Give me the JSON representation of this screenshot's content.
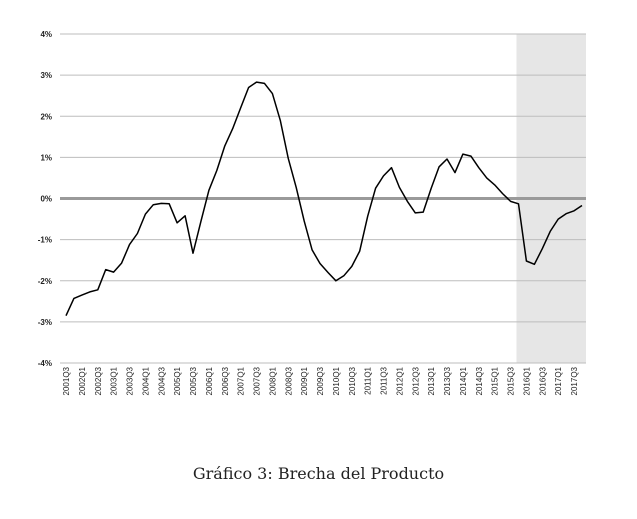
{
  "caption": "Gráfico 3: Brecha del Producto",
  "chart_data": {
    "type": "line",
    "title": "",
    "xlabel": "",
    "ylabel": "",
    "ylim": [
      -4,
      4
    ],
    "yticks": [
      4,
      3,
      2,
      1,
      0,
      -1,
      -2,
      -3,
      -4
    ],
    "ytick_labels": [
      "4%",
      "3%",
      "2%",
      "1%",
      "0%",
      "-1%",
      "-2%",
      "-3%",
      "-4%"
    ],
    "grid": true,
    "zero_line": {
      "value": 0,
      "color": "#9a9a9a"
    },
    "shaded_region": {
      "from": "2015Q4",
      "to": "2017Q4",
      "color": "#e6e6e6"
    },
    "line_color": "#000000",
    "x": [
      "2001Q3",
      "2001Q4",
      "2002Q1",
      "2002Q2",
      "2002Q3",
      "2002Q4",
      "2003Q1",
      "2003Q2",
      "2003Q3",
      "2003Q4",
      "2004Q1",
      "2004Q2",
      "2004Q3",
      "2004Q4",
      "2005Q1",
      "2005Q2",
      "2005Q3",
      "2005Q4",
      "2006Q1",
      "2006Q2",
      "2006Q3",
      "2006Q4",
      "2007Q1",
      "2007Q2",
      "2007Q3",
      "2007Q4",
      "2008Q1",
      "2008Q2",
      "2008Q3",
      "2008Q4",
      "2009Q1",
      "2009Q2",
      "2009Q3",
      "2009Q4",
      "2010Q1",
      "2010Q2",
      "2010Q3",
      "2010Q4",
      "2011Q1",
      "2011Q2",
      "2011Q3",
      "2011Q4",
      "2012Q1",
      "2012Q2",
      "2012Q3",
      "2012Q4",
      "2013Q1",
      "2013Q2",
      "2013Q3",
      "2013Q4",
      "2014Q1",
      "2014Q2",
      "2014Q3",
      "2014Q4",
      "2015Q1",
      "2015Q2",
      "2015Q3",
      "2015Q4",
      "2016Q1",
      "2016Q2",
      "2016Q3",
      "2016Q4",
      "2017Q1",
      "2017Q2",
      "2017Q3",
      "2017Q4"
    ],
    "x_tick_labels": [
      "2001Q3",
      "2002Q1",
      "2002Q3",
      "2003Q1",
      "2003Q3",
      "2004Q1",
      "2004Q3",
      "2005Q1",
      "2005Q3",
      "2006Q1",
      "2006Q3",
      "2007Q1",
      "2007Q3",
      "2008Q1",
      "2008Q3",
      "2009Q1",
      "2009Q3",
      "2010Q1",
      "2010Q3",
      "2011Q1",
      "2011Q3",
      "2012Q1",
      "2012Q3",
      "2013Q1",
      "2013Q3",
      "2014Q1",
      "2014Q3",
      "2015Q1",
      "2015Q3",
      "2016Q1",
      "2016Q3",
      "2017Q1",
      "2017Q3"
    ],
    "series": [
      {
        "values": [
          -2.85,
          -2.43,
          -2.35,
          -2.27,
          -2.22,
          -1.73,
          -1.79,
          -1.57,
          -1.12,
          -0.85,
          -0.38,
          -0.15,
          -0.12,
          -0.13,
          -0.59,
          -0.42,
          -1.33,
          -0.55,
          0.2,
          0.68,
          1.28,
          1.7,
          2.2,
          2.7,
          2.83,
          2.8,
          2.55,
          1.9,
          0.97,
          0.27,
          -0.55,
          -1.25,
          -1.58,
          -1.8,
          -2.0,
          -1.88,
          -1.65,
          -1.28,
          -0.43,
          0.25,
          0.55,
          0.75,
          0.27,
          -0.07,
          -0.35,
          -0.33,
          0.25,
          0.77,
          0.96,
          0.63,
          1.08,
          1.03,
          0.75,
          0.5,
          0.33,
          0.12,
          -0.07,
          -0.13,
          -1.52,
          -1.6,
          -1.22,
          -0.8,
          -0.5,
          -0.37,
          -0.3,
          -0.17
        ]
      }
    ]
  }
}
